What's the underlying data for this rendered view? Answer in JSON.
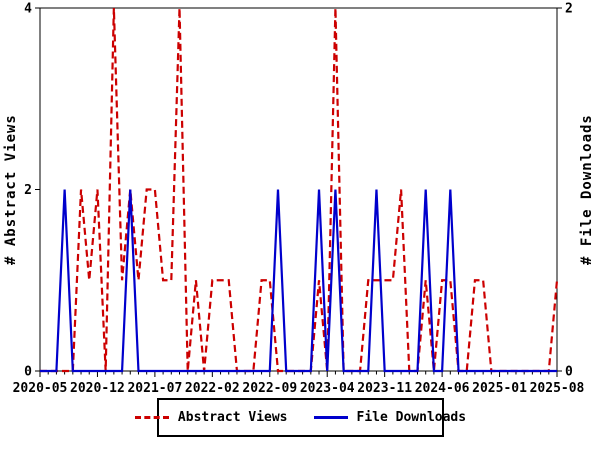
{
  "chart_data": {
    "type": "line",
    "title": "",
    "grid": false,
    "axis_color": "#000000",
    "background_color": "#ffffff",
    "legend_position": "bottom-center",
    "x_tick_interval_points": 7,
    "x_tick_labels": [
      "2020-05",
      "2020-12",
      "2021-07",
      "2022-02",
      "2022-09",
      "2023-04",
      "2023-11",
      "2024-06",
      "2025-01",
      "2025-08"
    ],
    "months": [
      "2020-05",
      "2020-06",
      "2020-07",
      "2020-08",
      "2020-09",
      "2020-10",
      "2020-11",
      "2020-12",
      "2021-01",
      "2021-02",
      "2021-03",
      "2021-04",
      "2021-05",
      "2021-06",
      "2021-07",
      "2021-08",
      "2021-09",
      "2021-10",
      "2021-11",
      "2021-12",
      "2022-01",
      "2022-02",
      "2022-03",
      "2022-04",
      "2022-05",
      "2022-06",
      "2022-07",
      "2022-08",
      "2022-09",
      "2022-10",
      "2022-11",
      "2022-12",
      "2023-01",
      "2023-02",
      "2023-03",
      "2023-04",
      "2023-05",
      "2023-06",
      "2023-07",
      "2023-08",
      "2023-09",
      "2023-10",
      "2023-11",
      "2023-12",
      "2024-01",
      "2024-02",
      "2024-03",
      "2024-04",
      "2024-05",
      "2024-06",
      "2024-07",
      "2024-08",
      "2024-09",
      "2024-10",
      "2024-11",
      "2024-12",
      "2025-01",
      "2025-02",
      "2025-03",
      "2025-04",
      "2025-05",
      "2025-06",
      "2025-07",
      "2025-08"
    ],
    "left_axis": {
      "title": "# Abstract Views",
      "min": 0,
      "max": 4,
      "ticks": [
        0,
        2,
        4
      ]
    },
    "right_axis": {
      "title": "# File Downloads",
      "min": 0,
      "max": 2,
      "ticks": [
        0,
        2
      ]
    },
    "series": [
      {
        "name": "Abstract Views",
        "color": "#cc0000",
        "style": "dashed",
        "axis": "left",
        "values": [
          0,
          0,
          0,
          0,
          0,
          2,
          1,
          2,
          0,
          4,
          1,
          2,
          1,
          2,
          2,
          1,
          1,
          4,
          0,
          1,
          0,
          1,
          1,
          1,
          0,
          0,
          0,
          1,
          1,
          0,
          0,
          0,
          0,
          0,
          1,
          0,
          4,
          0,
          0,
          0,
          1,
          1,
          1,
          1,
          2,
          0,
          0,
          1,
          0,
          1,
          1,
          0,
          0,
          1,
          1,
          0,
          0,
          0,
          0,
          0,
          0,
          0,
          0,
          1
        ]
      },
      {
        "name": "File Downloads",
        "color": "#0000cc",
        "style": "solid",
        "axis": "right",
        "values": [
          0,
          0,
          0,
          1,
          0,
          0,
          0,
          0,
          0,
          0,
          0,
          1,
          0,
          0,
          0,
          0,
          0,
          0,
          0,
          0,
          0,
          0,
          0,
          0,
          0,
          0,
          0,
          0,
          0,
          1,
          0,
          0,
          0,
          0,
          1,
          0,
          1,
          0,
          0,
          0,
          0,
          1,
          0,
          0,
          0,
          0,
          0,
          1,
          0,
          0,
          1,
          0,
          0,
          0,
          0,
          0,
          0,
          0,
          0,
          0,
          0,
          0,
          0,
          0
        ]
      }
    ]
  }
}
